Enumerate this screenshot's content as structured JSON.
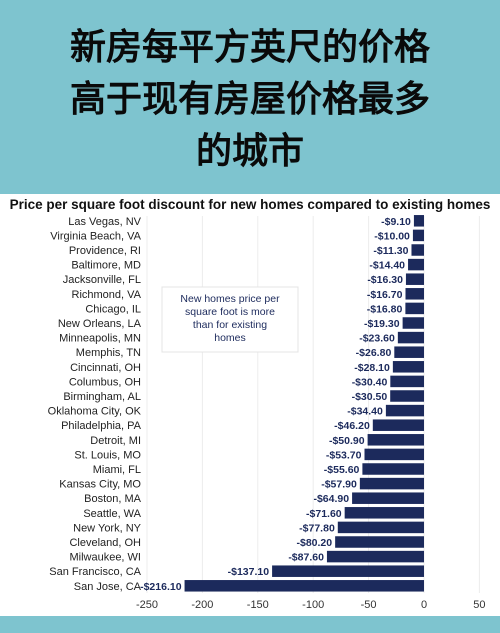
{
  "headline": {
    "line1": "新房每平方英尺的价格",
    "line2": "高于现有房屋价格最多",
    "line3": "的城市"
  },
  "colors": {
    "bar": "#1c2a5c",
    "background": "#7ec4cf",
    "annotation_text": "#1c2a5c"
  },
  "chart_data": {
    "type": "bar",
    "orientation": "horizontal",
    "title": "Price per square foot discount for new homes compared to existing homes",
    "annotation": "New homes price per square foot is more than for existing homes",
    "categories": [
      "Las Vegas, NV",
      "Virginia Beach, VA",
      "Providence, RI",
      "Baltimore, MD",
      "Jacksonville, FL",
      "Richmond, VA",
      "Chicago, IL",
      "New Orleans, LA",
      "Minneapolis, MN",
      "Memphis, TN",
      "Cincinnati, OH",
      "Columbus, OH",
      "Birmingham, AL",
      "Oklahoma City, OK",
      "Philadelphia, PA",
      "Detroit, MI",
      "St. Louis, MO",
      "Miami, FL",
      "Kansas City, MO",
      "Boston, MA",
      "Seattle, WA",
      "New York, NY",
      "Cleveland, OH",
      "Milwaukee, WI",
      "San Francisco, CA",
      "San Jose, CA"
    ],
    "values": [
      -9.1,
      -10.0,
      -11.3,
      -14.4,
      -16.3,
      -16.7,
      -16.8,
      -19.3,
      -23.6,
      -26.8,
      -28.1,
      -30.4,
      -30.5,
      -34.4,
      -46.2,
      -50.9,
      -53.7,
      -55.6,
      -57.9,
      -64.9,
      -71.6,
      -77.8,
      -80.2,
      -87.6,
      -137.1,
      -216.1
    ],
    "labels": [
      "-$9.10",
      "-$10.00",
      "-$11.30",
      "-$14.40",
      "-$16.30",
      "-$16.70",
      "-$16.80",
      "-$19.30",
      "-$23.60",
      "-$26.80",
      "-$28.10",
      "-$30.40",
      "-$30.50",
      "-$34.40",
      "-$46.20",
      "-$50.90",
      "-$53.70",
      "-$55.60",
      "-$57.90",
      "-$64.90",
      "-$71.60",
      "-$77.80",
      "-$80.20",
      "-$87.60",
      "-$137.10",
      "-$216.10"
    ],
    "xlim": [
      -250,
      50
    ],
    "xticks": [
      "-250",
      "-200",
      "-150",
      "-100",
      "-50",
      "0",
      "50"
    ],
    "xtick_values": [
      -250,
      -200,
      -150,
      -100,
      -50,
      0,
      50
    ],
    "grid": true
  }
}
